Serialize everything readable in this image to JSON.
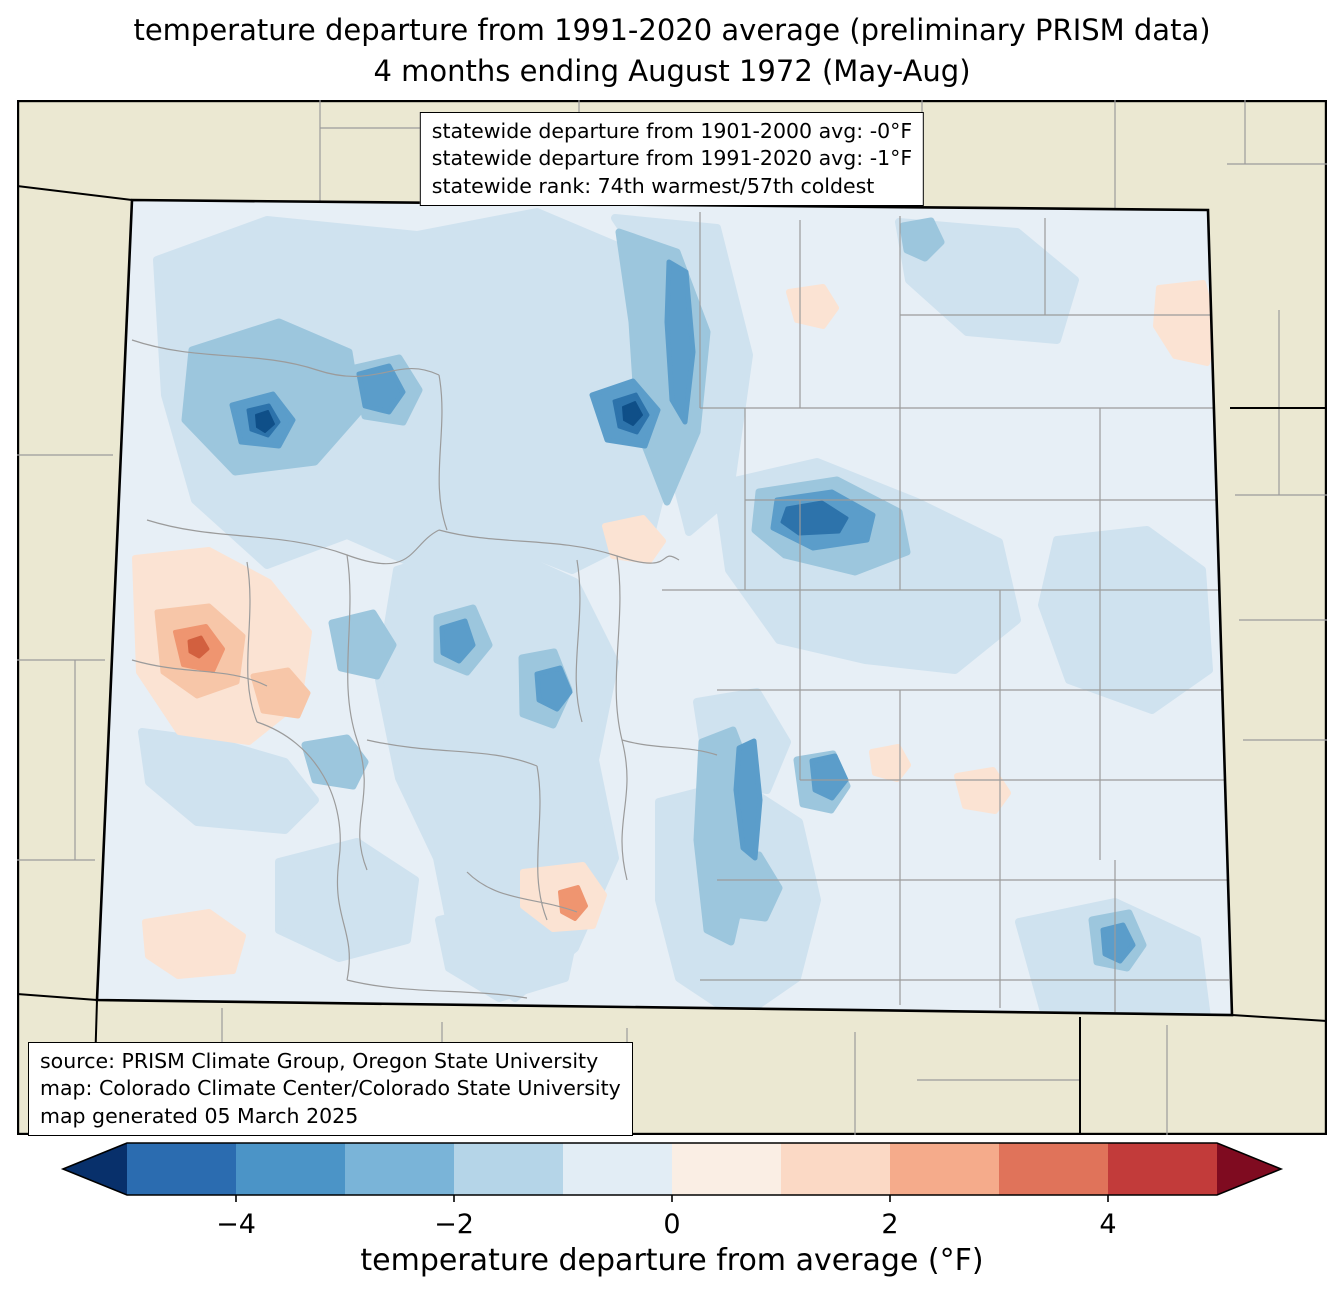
{
  "title": {
    "line1": "temperature departure from 1991-2020 average (preliminary PRISM data)",
    "line2": "4 months ending August 1972 (May-Aug)"
  },
  "stats_box": {
    "lines": [
      "statewide departure from 1901-2000 avg: -0°F",
      "statewide departure from 1991-2020 avg: -1°F",
      "statewide rank: 74th warmest/57th coldest"
    ]
  },
  "credits_box": {
    "lines": [
      "source: PRISM Climate Group, Oregon State University",
      "map: Colorado Climate Center/Colorado State University",
      "map generated 05 March 2025"
    ]
  },
  "colorbar": {
    "label": "temperature departure from average (°F)",
    "range": [
      -5,
      5
    ],
    "ticks": [
      {
        "value": -4,
        "label": "−4"
      },
      {
        "value": -2,
        "label": "−2"
      },
      {
        "value": 0,
        "label": "0"
      },
      {
        "value": 2,
        "label": "2"
      },
      {
        "value": 4,
        "label": "4"
      }
    ],
    "segments": [
      "#2b6cb0",
      "#4b94c7",
      "#7ab4d8",
      "#b5d5e8",
      "#e2edf5",
      "#faeee4",
      "#fbd9c5",
      "#f5ab8b",
      "#e0735a",
      "#c23b3a"
    ],
    "under_color": "#08306b",
    "over_color": "#7f0b20"
  },
  "map_colors": {
    "land": "#ebe8d2",
    "state_base": "#e7eff6",
    "county_lines": "#9b9b9b",
    "state_border": "#000000"
  }
}
